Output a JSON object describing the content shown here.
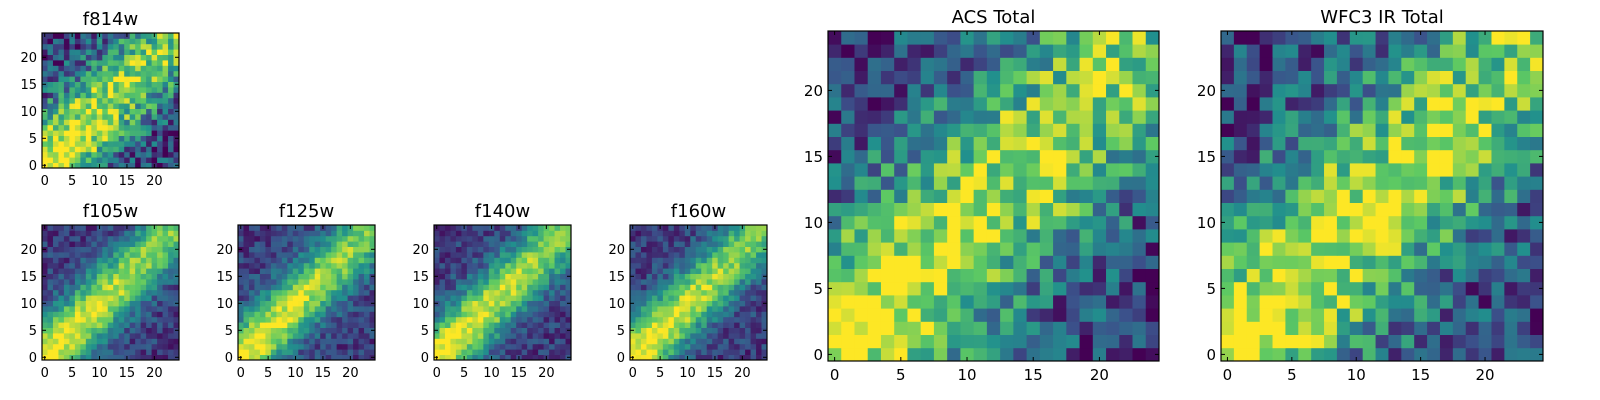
{
  "figure": {
    "colormap": [
      "#440154",
      "#3b528b",
      "#21908d",
      "#5dc963",
      "#fde725"
    ]
  },
  "chart_data": [
    {
      "type": "heatmap",
      "title": "f814w",
      "grid": [
        25,
        25
      ],
      "xlim": [
        0,
        25
      ],
      "ylim": [
        0,
        25
      ],
      "xticks": [
        "0",
        "5",
        "10",
        "15",
        "20"
      ],
      "yticks": [
        "0",
        "5",
        "10",
        "15",
        "20"
      ],
      "pattern": "diagonal band from lower-left to upper-right, noisy"
    },
    {
      "type": "heatmap",
      "title": "f105w",
      "grid": [
        25,
        25
      ],
      "xlim": [
        0,
        25
      ],
      "ylim": [
        0,
        25
      ],
      "xticks": [
        "0",
        "5",
        "10",
        "15",
        "20"
      ],
      "yticks": [
        "0",
        "5",
        "10",
        "15",
        "20"
      ],
      "pattern": "diagonal band from lower-left to upper-right"
    },
    {
      "type": "heatmap",
      "title": "f125w",
      "grid": [
        25,
        25
      ],
      "xlim": [
        0,
        25
      ],
      "ylim": [
        0,
        25
      ],
      "xticks": [
        "0",
        "5",
        "10",
        "15",
        "20"
      ],
      "yticks": [
        "0",
        "5",
        "10",
        "15",
        "20"
      ],
      "pattern": "diagonal band from lower-left to upper-right"
    },
    {
      "type": "heatmap",
      "title": "f140w",
      "grid": [
        25,
        25
      ],
      "xlim": [
        0,
        25
      ],
      "ylim": [
        0,
        25
      ],
      "xticks": [
        "0",
        "5",
        "10",
        "15",
        "20"
      ],
      "yticks": [
        "0",
        "5",
        "10",
        "15",
        "20"
      ],
      "pattern": "diagonal band from lower-left to upper-right"
    },
    {
      "type": "heatmap",
      "title": "f160w",
      "grid": [
        25,
        25
      ],
      "xlim": [
        0,
        25
      ],
      "ylim": [
        0,
        25
      ],
      "xticks": [
        "0",
        "5",
        "10",
        "15",
        "20"
      ],
      "yticks": [
        "0",
        "5",
        "10",
        "15",
        "20"
      ],
      "pattern": "diagonal band from lower-left to upper-right"
    },
    {
      "type": "heatmap",
      "title": "ACS Total",
      "grid": [
        25,
        25
      ],
      "xlim": [
        0,
        25
      ],
      "ylim": [
        0,
        25
      ],
      "xticks": [
        "0",
        "5",
        "10",
        "15",
        "20"
      ],
      "yticks": [
        "0",
        "5",
        "10",
        "15",
        "20"
      ],
      "pattern": "diagonal band from lower-left to upper-right, noisy"
    },
    {
      "type": "heatmap",
      "title": "WFC3 IR Total",
      "grid": [
        25,
        25
      ],
      "xlim": [
        0,
        25
      ],
      "ylim": [
        0,
        25
      ],
      "xticks": [
        "0",
        "5",
        "10",
        "15",
        "20"
      ],
      "yticks": [
        "0",
        "5",
        "10",
        "15",
        "20"
      ],
      "pattern": "diagonal band from lower-left to upper-right, noisy"
    }
  ]
}
